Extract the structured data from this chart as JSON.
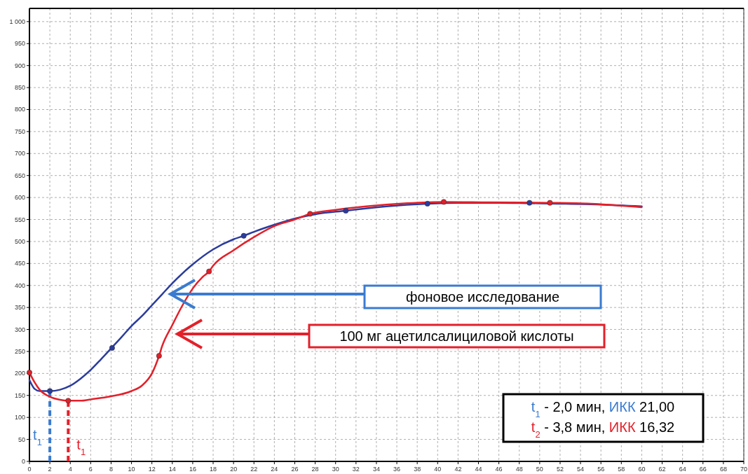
{
  "chart_data": {
    "type": "line",
    "xlim": [
      0,
      70
    ],
    "ylim": [
      0,
      1030
    ],
    "xticks": [
      0,
      2,
      4,
      6,
      8,
      10,
      12,
      14,
      16,
      18,
      20,
      22,
      24,
      26,
      28,
      30,
      32,
      34,
      36,
      38,
      40,
      42,
      44,
      46,
      48,
      50,
      52,
      54,
      56,
      58,
      60,
      62,
      64,
      66,
      68,
      70
    ],
    "yticks": [
      0,
      50,
      100,
      150,
      200,
      250,
      300,
      350,
      400,
      450,
      500,
      550,
      600,
      650,
      700,
      750,
      800,
      850,
      900,
      950,
      {
        "value": 1000,
        "label": "1 000"
      }
    ],
    "grid": true,
    "marker": "none",
    "line_style": "solid",
    "series": [
      {
        "color": "#2b3c9c",
        "x": [
          0,
          0.5,
          1,
          2,
          3,
          4,
          5,
          6,
          7,
          8,
          9,
          10,
          11,
          12,
          13,
          14,
          16,
          18,
          20,
          21,
          22,
          24,
          26,
          28,
          31,
          35,
          39,
          42,
          46,
          49,
          52,
          56,
          60
        ],
        "values": [
          185,
          165,
          160,
          160,
          163,
          172,
          188,
          208,
          232,
          257,
          282,
          308,
          330,
          355,
          380,
          405,
          448,
          482,
          505,
          513,
          522,
          538,
          552,
          562,
          570,
          580,
          586,
          588,
          588,
          587,
          586,
          584,
          580
        ]
      },
      {
        "color": "#e3202a",
        "x": [
          0,
          0.5,
          1,
          2,
          3,
          3.8,
          5,
          6,
          8,
          10,
          11,
          12,
          12.7,
          13,
          14,
          15,
          16,
          17,
          17.6,
          18,
          20,
          22,
          24,
          26,
          27.5,
          30,
          33,
          37,
          40.6,
          45,
          51,
          55,
          60
        ],
        "values": [
          202,
          180,
          163,
          147,
          140,
          138,
          138,
          141,
          148,
          160,
          172,
          200,
          240,
          262,
          310,
          355,
          393,
          420,
          432,
          445,
          480,
          510,
          535,
          550,
          563,
          572,
          580,
          587,
          590,
          589,
          588,
          586,
          578
        ]
      },
      {
        "type": "scatter",
        "marker": "circle",
        "color": "#2b3c9c",
        "x": [
          2,
          8.1,
          21,
          31,
          39,
          49
        ],
        "values": [
          160,
          258,
          513,
          570,
          586,
          588
        ]
      },
      {
        "type": "scatter",
        "marker": "circle",
        "color": "#e3202a",
        "x": [
          0,
          3.8,
          12.7,
          17.6,
          27.5,
          40.6,
          51
        ],
        "values": [
          202,
          138,
          240,
          432,
          563,
          590,
          588
        ]
      }
    ],
    "ref_lines": [
      {
        "axis": "x",
        "value": 2,
        "label": "t$_{1}$",
        "color": "#3a7bd0",
        "line_style": "dashed"
      },
      {
        "axis": "x",
        "value": 3.8,
        "label": "t$_{1}$",
        "color": "#e3202a",
        "line_style": "dashed"
      }
    ],
    "annotations": [
      "фоновое исследование",
      "100 мг ацетилсалициловой кислоты",
      "t$_{1}$ - 2,0 мин, ИКК 21,00",
      "t$_{2}$ - 3,8 мин, ИКК 16,32"
    ]
  }
}
